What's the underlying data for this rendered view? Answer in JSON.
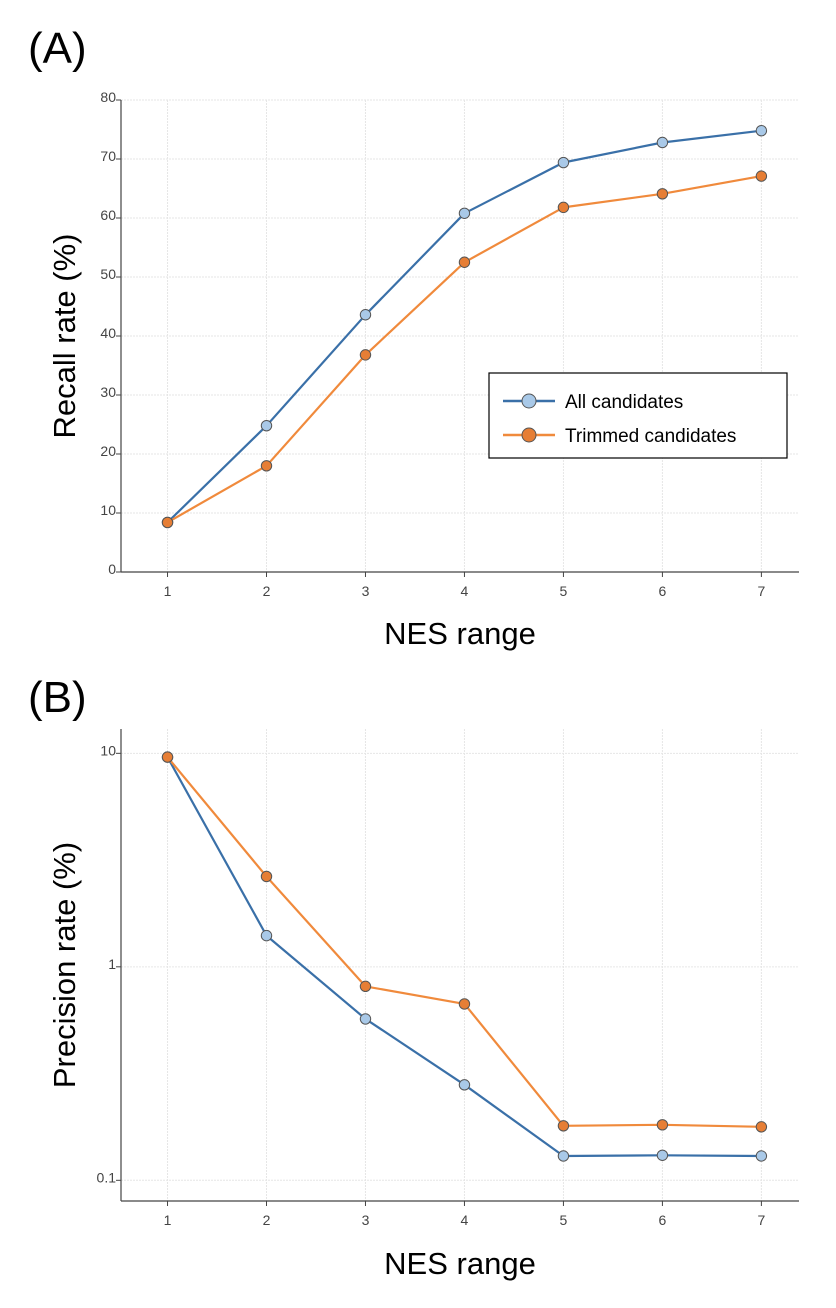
{
  "chart_data": [
    {
      "panel_label": "(A)",
      "type": "line",
      "title": "",
      "xlabel": "NES range",
      "ylabel": "Recall rate (%)",
      "x": [
        1,
        2,
        3,
        4,
        5,
        6,
        7
      ],
      "x_tick_labels": [
        "1",
        "2",
        "3",
        "4",
        "5",
        "6",
        "7"
      ],
      "y_scale": "linear",
      "ylim": [
        0,
        80
      ],
      "y_ticks": [
        0,
        10,
        20,
        30,
        40,
        50,
        60,
        70,
        80
      ],
      "y_tick_labels": [
        "0",
        "10",
        "20",
        "30",
        "40",
        "50",
        "60",
        "70",
        "80"
      ],
      "grid": true,
      "legend_position": "right-middle",
      "series": [
        {
          "name": "All candidates",
          "color": "#3a70a8",
          "marker_color": "#a9c9e8",
          "values": [
            8.4,
            24.8,
            43.6,
            60.8,
            69.4,
            72.8,
            74.8
          ]
        },
        {
          "name": "Trimmed candidates",
          "color": "#f08a3c",
          "marker_color": "#e67e35",
          "values": [
            8.4,
            18.0,
            36.8,
            52.5,
            61.8,
            64.1,
            67.1
          ]
        }
      ]
    },
    {
      "panel_label": "(B)",
      "type": "line",
      "title": "",
      "xlabel": "NES range",
      "ylabel": "Precision rate (%)",
      "x": [
        1,
        2,
        3,
        4,
        5,
        6,
        7
      ],
      "x_tick_labels": [
        "1",
        "2",
        "3",
        "4",
        "5",
        "6",
        "7"
      ],
      "y_scale": "log",
      "ylim": [
        0.08,
        13
      ],
      "y_ticks": [
        0.1,
        1,
        10
      ],
      "y_tick_labels": [
        "0.1",
        "1",
        "10"
      ],
      "grid": true,
      "legend_position": "none",
      "series": [
        {
          "name": "All candidates",
          "color": "#3a70a8",
          "marker_color": "#a9c9e8",
          "values": [
            9.6,
            1.4,
            0.57,
            0.28,
            0.13,
            0.131,
            0.13
          ]
        },
        {
          "name": "Trimmed candidates",
          "color": "#f08a3c",
          "marker_color": "#e67e35",
          "values": [
            9.6,
            2.65,
            0.81,
            0.67,
            0.18,
            0.182,
            0.178
          ]
        }
      ]
    }
  ]
}
